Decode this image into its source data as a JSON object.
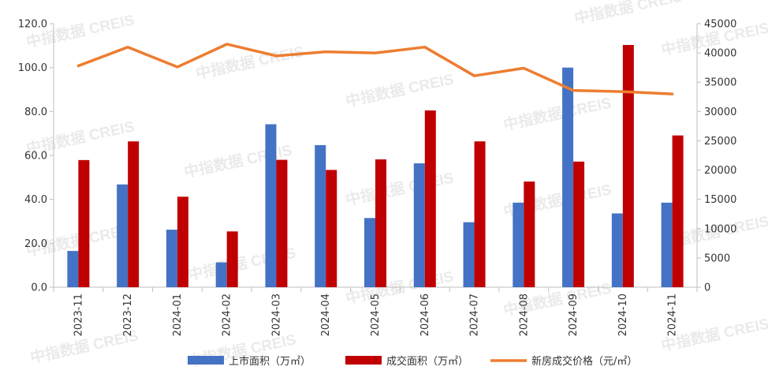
{
  "chart_data": {
    "type": "bar",
    "categories": [
      "2023-11",
      "2023-12",
      "2024-01",
      "2024-02",
      "2024-03",
      "2024-04",
      "2024-05",
      "2024-06",
      "2024-07",
      "2024-08",
      "2024-09",
      "2024-10",
      "2024-11"
    ],
    "series": [
      {
        "name": "上市面积（万㎡）",
        "kind": "bar",
        "axis": "left",
        "color": "#4472C4",
        "values": [
          16.5,
          46.8,
          26.2,
          11.3,
          74.2,
          64.7,
          31.5,
          56.4,
          29.6,
          38.5,
          100.0,
          33.6,
          38.5
        ]
      },
      {
        "name": "成交面积（万㎡）",
        "kind": "bar",
        "axis": "left",
        "color": "#C00000",
        "values": [
          57.9,
          66.4,
          41.2,
          25.4,
          58.0,
          53.4,
          58.2,
          80.5,
          66.4,
          48.1,
          57.2,
          110.3,
          69.1
        ]
      },
      {
        "name": "新房成交价格（元/㎡）",
        "kind": "line",
        "axis": "right",
        "color": "#ED7D31",
        "values": [
          37800,
          41000,
          37600,
          41500,
          39500,
          40200,
          40000,
          41000,
          36100,
          37400,
          33600,
          33400,
          33000
        ]
      }
    ],
    "y_left": {
      "min": 0,
      "max": 120,
      "step": 20,
      "decimals": 1
    },
    "y_right": {
      "min": 0,
      "max": 45000,
      "step": 5000,
      "decimals": 0
    },
    "legend_position": "bottom",
    "grid": false,
    "watermark": "中指数据 CREIS"
  }
}
